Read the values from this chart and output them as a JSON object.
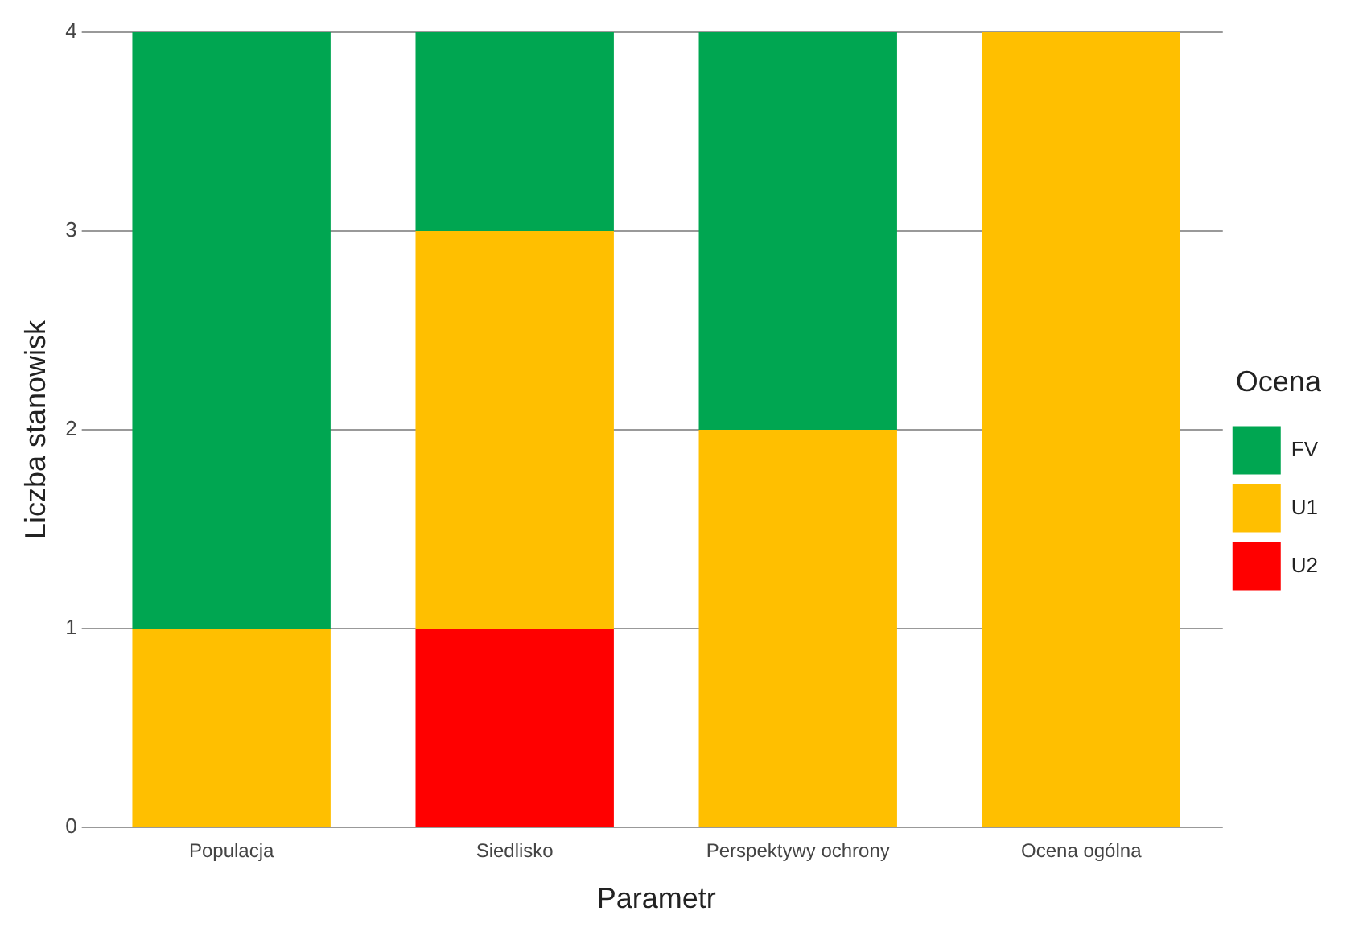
{
  "chart_data": {
    "type": "bar",
    "stacked": true,
    "xlabel": "Parametr",
    "ylabel": "Liczba stanowisk",
    "legend_title": "Ocena",
    "legend": "right",
    "categories": [
      "Populacja",
      "Siedlisko",
      "Perspektywy ochrony",
      "Ocena ogólna"
    ],
    "series": [
      {
        "name": "U2",
        "color": "#ff0000",
        "values": [
          0,
          1,
          0,
          0
        ]
      },
      {
        "name": "U1",
        "color": "#ffbf00",
        "values": [
          1,
          2,
          2,
          4
        ]
      },
      {
        "name": "FV",
        "color": "#00a651",
        "values": [
          3,
          1,
          2,
          0
        ]
      }
    ],
    "ylim": [
      0,
      4
    ],
    "yticks": [
      0,
      1,
      2,
      3,
      4
    ],
    "grid": "y"
  }
}
